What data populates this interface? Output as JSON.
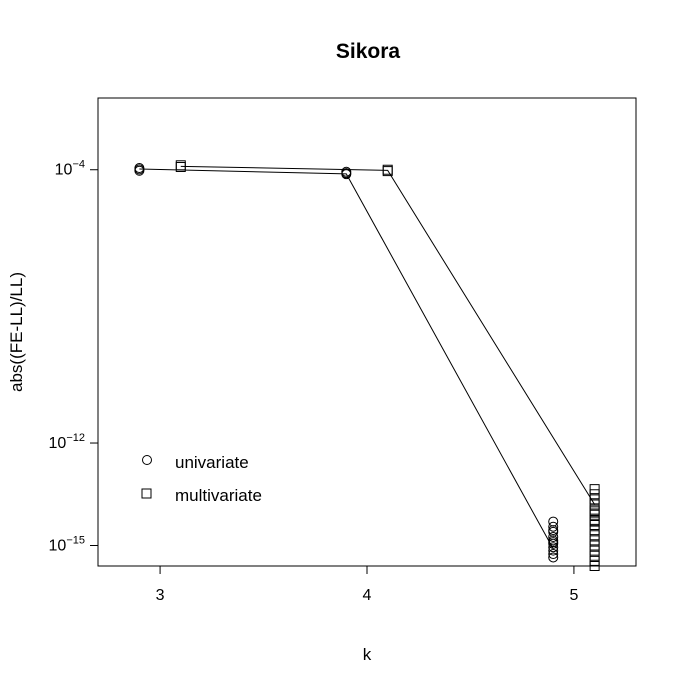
{
  "chart_data": {
    "type": "scatter",
    "title": "Sikora",
    "xlabel": "k",
    "ylabel": "abs((FE-LL)/LL)",
    "xlim": [
      2.7,
      5.3
    ],
    "ylim_log10": [
      -15.6,
      -1.9
    ],
    "y_scale": "log",
    "x_ticks": [
      {
        "value": 3,
        "label": "3"
      },
      {
        "value": 4,
        "label": "4"
      },
      {
        "value": 5,
        "label": "5"
      }
    ],
    "y_ticks": [
      {
        "exp": -4,
        "base": "10",
        "sup": "−4"
      },
      {
        "exp": -12,
        "base": "10",
        "sup": "−12"
      },
      {
        "exp": -15,
        "base": "10",
        "sup": "−15"
      }
    ],
    "legend_position": "bottom-left",
    "series": [
      {
        "name": "univariate",
        "marker": "circle",
        "x": [
          2.9,
          2.9,
          2.9,
          3.9,
          3.9,
          3.9,
          4.9,
          4.9,
          4.9,
          4.9,
          4.9,
          4.9,
          4.9,
          4.9,
          4.9,
          4.9,
          4.9,
          4.9
        ],
        "log10_y": [
          -3.95,
          -3.99,
          -4.03,
          -4.06,
          -4.1,
          -4.13,
          -14.3,
          -14.45,
          -14.6,
          -14.75,
          -14.85,
          -14.95,
          -15.05,
          -15.15,
          -15.25,
          -14.55,
          -14.9,
          -15.35
        ],
        "line_log10_y": [
          -3.98,
          -4.12,
          -15.1
        ]
      },
      {
        "name": "multivariate",
        "marker": "square",
        "x": [
          3.1,
          3.1,
          4.1,
          4.1,
          5.1,
          5.1,
          5.1,
          5.1,
          5.1,
          5.1,
          5.1,
          5.1,
          5.1,
          5.1,
          5.1,
          5.1,
          5.1,
          5.1,
          5.1,
          5.1,
          5.1,
          5.1
        ],
        "log10_y": [
          -3.87,
          -3.92,
          -4.0,
          -4.04,
          -13.35,
          -13.5,
          -13.65,
          -13.8,
          -13.95,
          -14.1,
          -14.25,
          -14.4,
          -14.55,
          -14.7,
          -14.85,
          -15.0,
          -15.15,
          -15.3,
          -15.45,
          -15.6,
          -14.0,
          -14.3
        ],
        "line_log10_y": [
          -3.9,
          -4.02,
          -13.8
        ]
      }
    ]
  }
}
